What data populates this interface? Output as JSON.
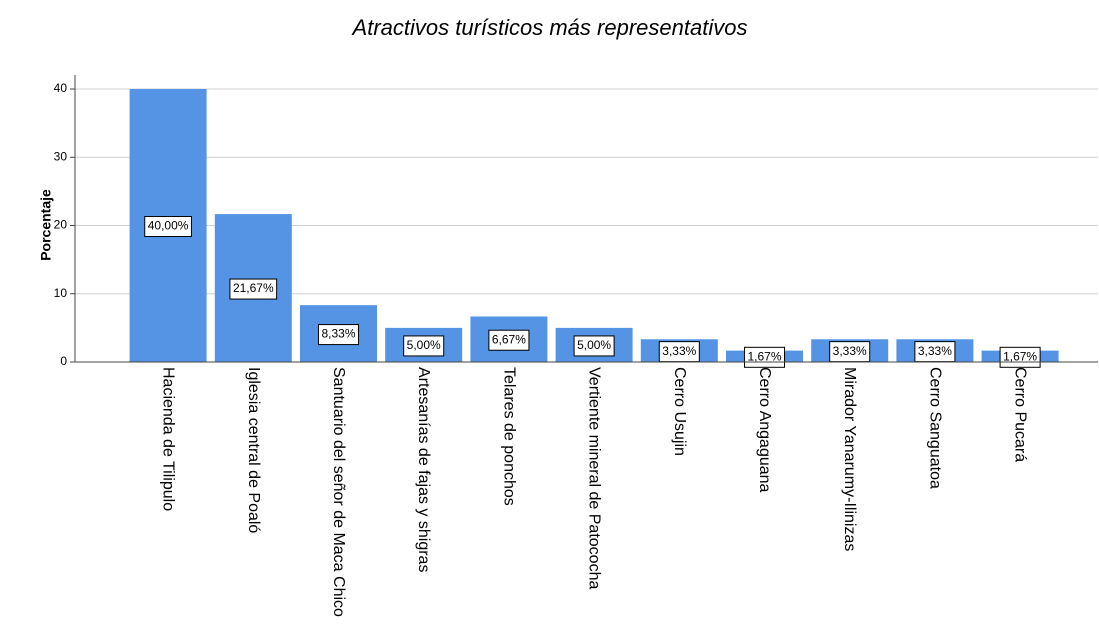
{
  "chart_data": {
    "type": "bar",
    "title": "Atractivos turísticos más representativos",
    "y_label": "Porcentaje",
    "categories": [
      "Hacienda de Tilipulo",
      "Iglesia central de Poaló",
      "Santuario del señor de Maca Chico",
      "Artesanías de fajas y shigras",
      "Telares de ponchos",
      "Vertiente mineral de Patococha",
      "Cerro Usujin",
      "Cerro Angaguana",
      "Mirador Yanarumy-Ilinizas",
      "Cerro Sanguatoa",
      "Cerro Pucará"
    ],
    "values": [
      40,
      21.67,
      8.33,
      5,
      6.67,
      5,
      3.33,
      1.67,
      3.33,
      3.33,
      1.67
    ],
    "value_labels": [
      "40,00%",
      "21,67%",
      "8,33%",
      "5,00%",
      "6,67%",
      "5,00%",
      "3,33%",
      "1,67%",
      "3,33%",
      "3,33%",
      "1,67%"
    ],
    "color": "#5594e4",
    "ylim": [
      0,
      40
    ],
    "yticks": [
      0,
      10,
      20,
      30,
      40
    ],
    "grid": true
  }
}
